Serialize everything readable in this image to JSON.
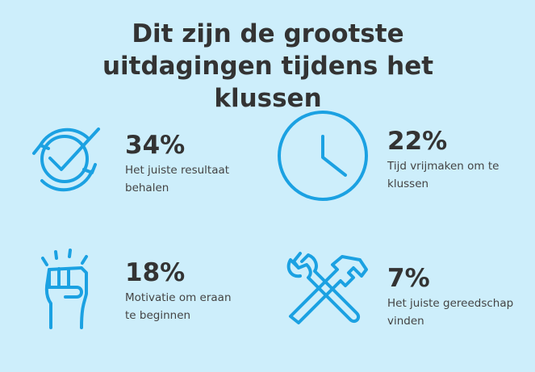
{
  "title": "Dit zijn de grootste uitdagingen tijdens het klussen",
  "items": [
    {
      "value": "34%",
      "label": "Het juiste resultaat behalen"
    },
    {
      "value": "22%",
      "label": "Tijd vrijmaken om te klussen"
    },
    {
      "value": "18%",
      "label": "Motivatie om eraan te beginnen"
    },
    {
      "value": "7%",
      "label": "Het juiste gereedschap vinden"
    }
  ]
}
